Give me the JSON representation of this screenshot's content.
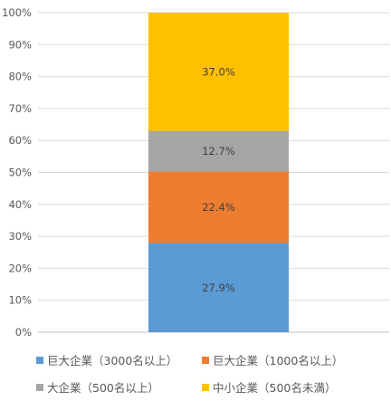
{
  "chart_data": {
    "type": "bar",
    "stacked": true,
    "ylim": [
      0,
      100
    ],
    "ytick_labels": [
      "0%",
      "10%",
      "20%",
      "30%",
      "40%",
      "50%",
      "60%",
      "70%",
      "80%",
      "90%",
      "100%"
    ],
    "grid": true,
    "legend_position": "bottom",
    "series": [
      {
        "name": "巨大企業（3000名以上）",
        "value": 27.9,
        "label": "27.9%",
        "color": "#5B9BD5"
      },
      {
        "name": "巨大企業（1000名以上）",
        "value": 22.4,
        "label": "22.4%",
        "color": "#ED7D31"
      },
      {
        "name": "大企業（500名以上）",
        "value": 12.7,
        "label": "12.7%",
        "color": "#A5A5A5"
      },
      {
        "name": "中小企業（500名未満）",
        "value": 37.0,
        "label": "37.0%",
        "color": "#FFC000"
      }
    ]
  }
}
